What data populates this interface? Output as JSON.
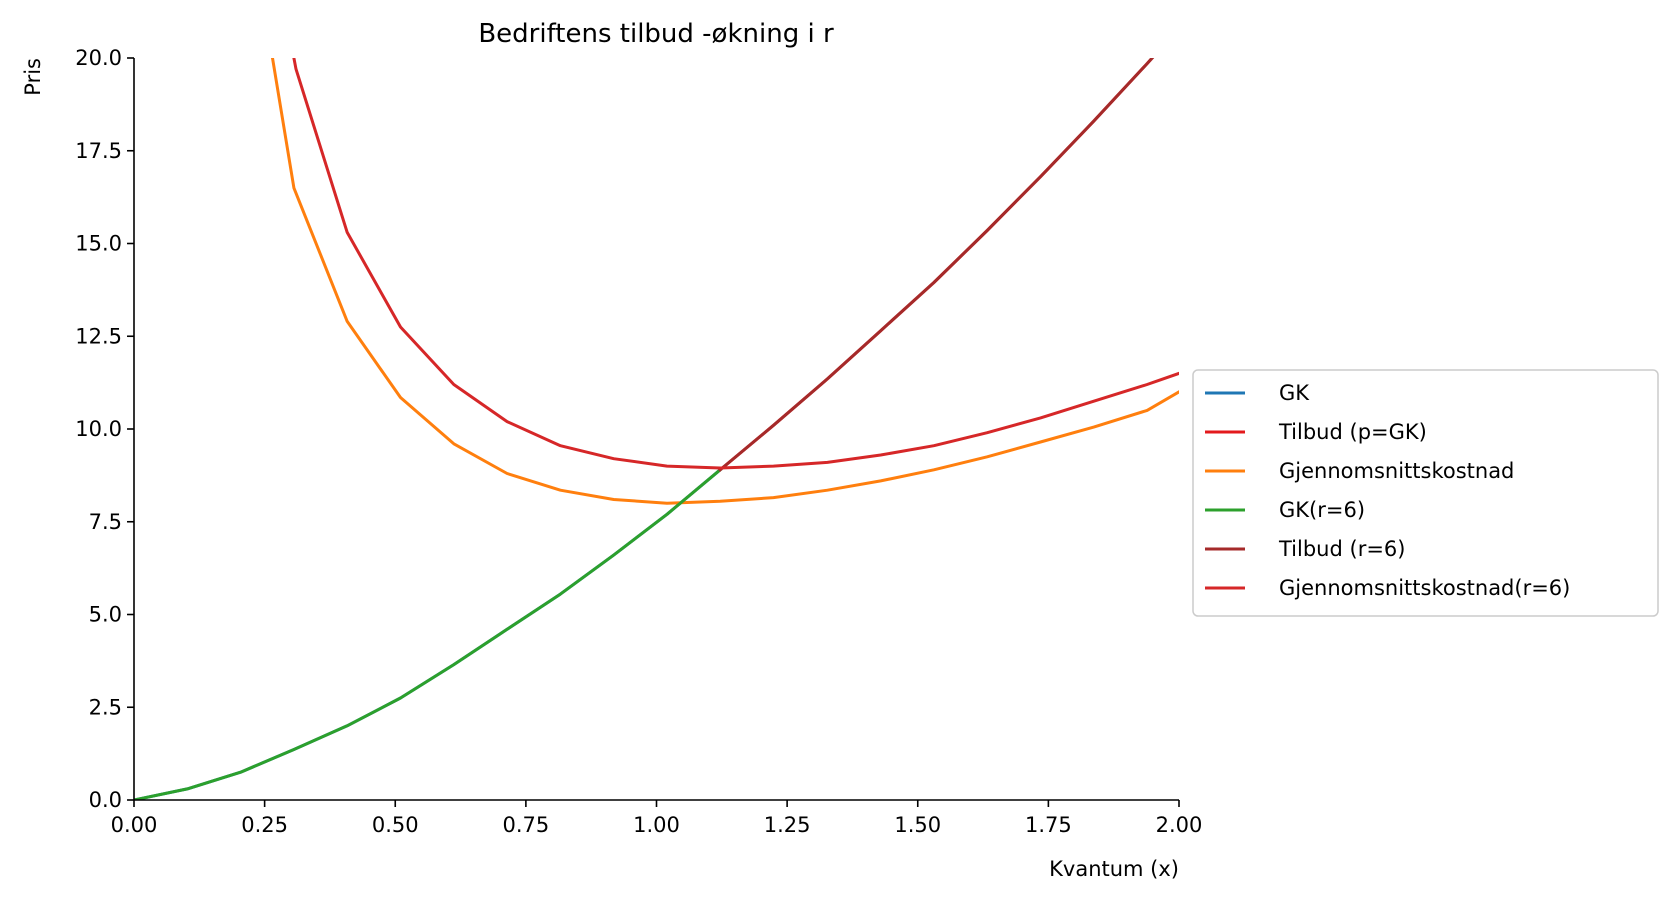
{
  "chart_data": {
    "type": "line",
    "title": "Bedriftens tilbud -økning i r",
    "xlabel": "Kvantum (x)",
    "ylabel": "Pris",
    "xlim": [
      0,
      2
    ],
    "ylim": [
      0,
      20
    ],
    "xticks": [
      0,
      0.25,
      0.5,
      0.75,
      1.0,
      1.25,
      1.5,
      1.75,
      2.0
    ],
    "xtick_labels": [
      "0.00",
      "0.25",
      "0.50",
      "0.75",
      "1.00",
      "1.25",
      "1.50",
      "1.75",
      "2.00"
    ],
    "yticks": [
      0,
      2.5,
      5,
      7.5,
      10,
      12.5,
      15,
      17.5,
      20
    ],
    "ytick_labels": [
      "0.0",
      "2.5",
      "5.0",
      "7.5",
      "10.0",
      "12.5",
      "15.0",
      "17.5",
      "20.0"
    ],
    "grid": false,
    "legend_position": "outside right, center",
    "series": [
      {
        "name": "GK",
        "color": "#1f77b4",
        "x": [
          0.0,
          0.102,
          0.204,
          0.306,
          0.408,
          0.51,
          0.612,
          0.714,
          0.816,
          0.918,
          1.02,
          1.122
        ],
        "y": [
          0.0,
          0.3,
          0.75,
          1.36,
          2.0,
          2.75,
          3.65,
          4.6,
          5.55,
          6.6,
          7.7,
          8.9
        ]
      },
      {
        "name": "Tilbud (p=GK)",
        "color": "#e31a1c",
        "x": [
          1.122,
          1.224,
          1.327,
          1.429,
          1.531,
          1.633,
          1.735,
          1.837,
          1.939,
          2.0
        ],
        "y": [
          8.9,
          10.1,
          11.35,
          12.65,
          13.95,
          15.35,
          16.8,
          18.3,
          19.85,
          20.8
        ]
      },
      {
        "name": "Gjennomsnittskostnad",
        "color": "#ff7f0e",
        "x": [
          0.265,
          0.306,
          0.408,
          0.51,
          0.612,
          0.714,
          0.816,
          0.918,
          1.02,
          1.122,
          1.224,
          1.327,
          1.429,
          1.531,
          1.633,
          1.735,
          1.837,
          1.939,
          2.0
        ],
        "y": [
          20.0,
          16.5,
          12.9,
          10.85,
          9.6,
          8.8,
          8.35,
          8.1,
          8.0,
          8.05,
          8.15,
          8.35,
          8.6,
          8.9,
          9.25,
          9.65,
          10.05,
          10.5,
          11.0
        ]
      },
      {
        "name": "GK(r=6)",
        "color": "#2ca02c",
        "x": [
          0.0,
          0.102,
          0.204,
          0.306,
          0.408,
          0.51,
          0.612,
          0.714,
          0.816,
          0.918,
          1.02,
          1.122
        ],
        "y": [
          0.0,
          0.3,
          0.75,
          1.36,
          2.0,
          2.75,
          3.65,
          4.6,
          5.55,
          6.6,
          7.7,
          8.9
        ]
      },
      {
        "name": "Tilbud (r=6)",
        "color": "#a52a2a",
        "x": [
          1.122,
          1.224,
          1.327,
          1.429,
          1.531,
          1.633,
          1.735,
          1.837,
          1.939,
          2.0
        ],
        "y": [
          8.9,
          10.1,
          11.35,
          12.65,
          13.95,
          15.35,
          16.8,
          18.3,
          19.85,
          20.8
        ]
      },
      {
        "name": "Gjennomsnittskostnad(r=6)",
        "color": "#d62728",
        "x": [
          0.306,
          0.31,
          0.408,
          0.51,
          0.612,
          0.714,
          0.816,
          0.918,
          1.02,
          1.122,
          1.224,
          1.327,
          1.429,
          1.531,
          1.633,
          1.735,
          1.837,
          1.939,
          2.0
        ],
        "y": [
          20.0,
          19.7,
          15.3,
          12.75,
          11.2,
          10.2,
          9.55,
          9.2,
          9.0,
          8.95,
          9.0,
          9.1,
          9.3,
          9.55,
          9.9,
          10.3,
          10.75,
          11.2,
          11.5
        ]
      }
    ]
  }
}
